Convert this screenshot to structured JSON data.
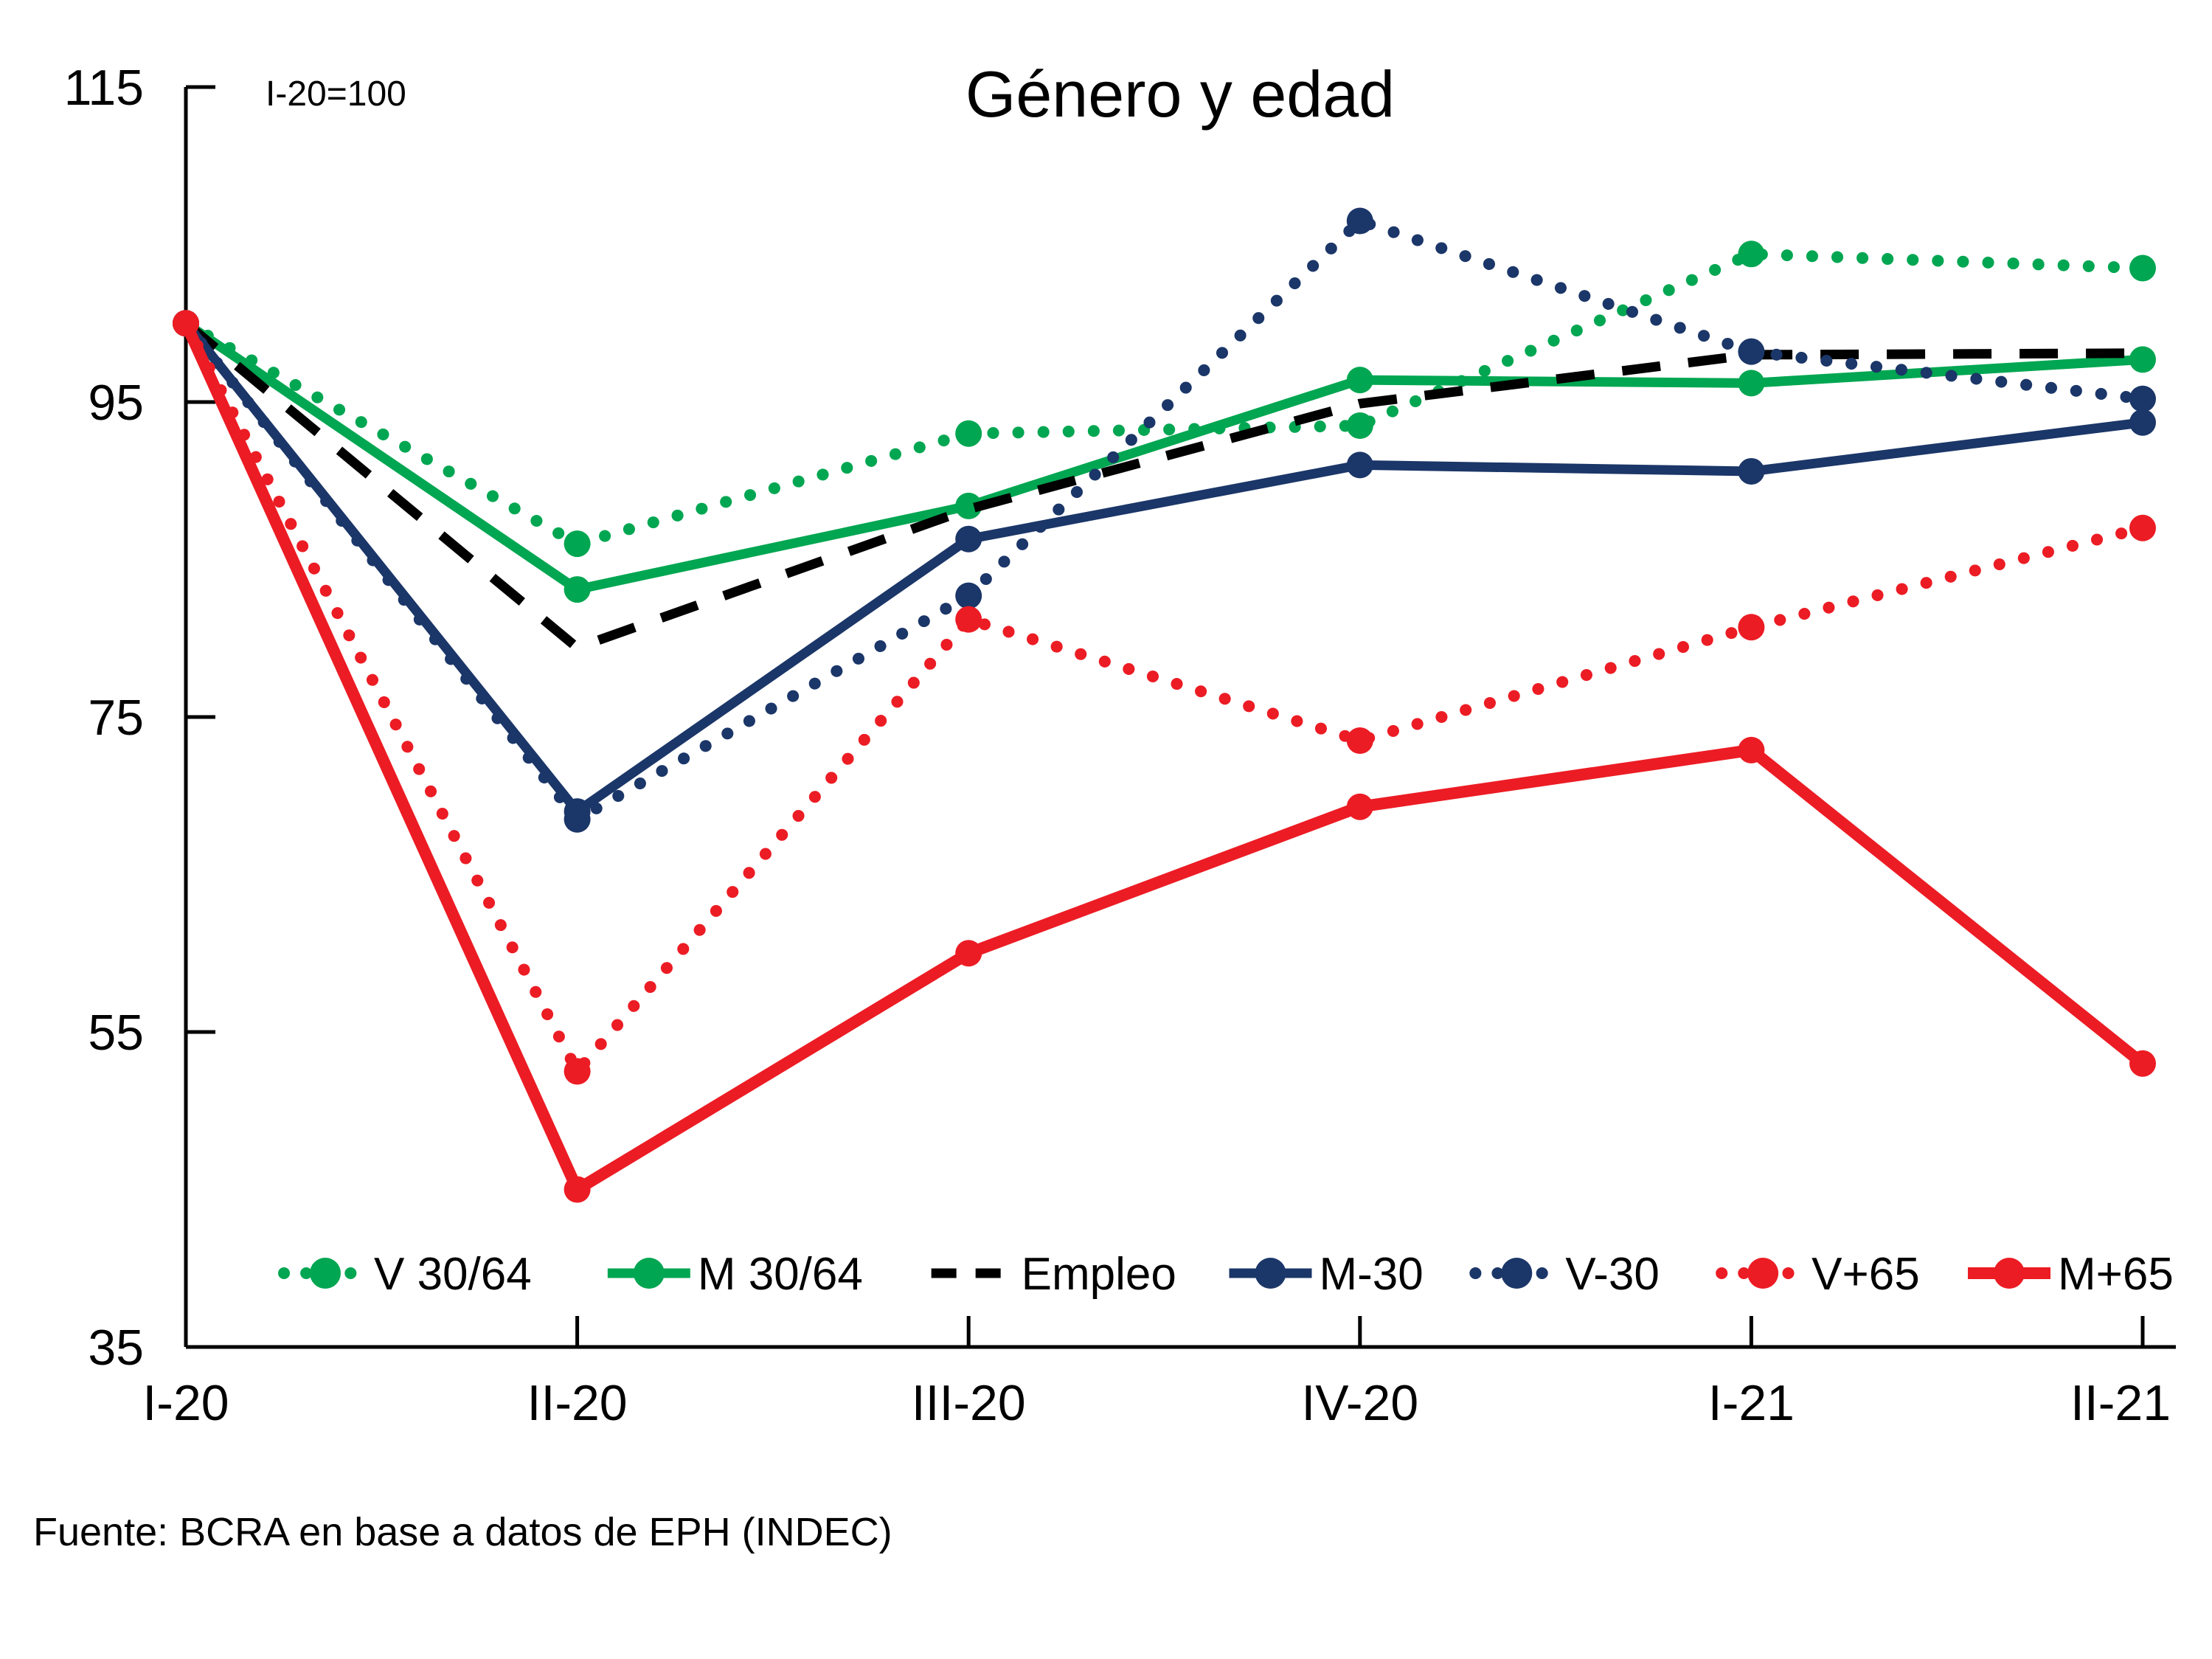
{
  "footer": {
    "source": "Fuente: BCRA en base a datos de EPH (INDEC)"
  },
  "colors": {
    "green": "#00A651",
    "navy": "#1B3668",
    "red": "#EC1C24",
    "black": "#000000",
    "axis": "#000000"
  },
  "chart_data": {
    "type": "line",
    "title": "Género y edad",
    "note": "I-20=100",
    "xlabel": "",
    "ylabel": "",
    "categories": [
      "I-20",
      "II-20",
      "III-20",
      "IV-20",
      "I-21",
      "II-21"
    ],
    "ylim": [
      35,
      115
    ],
    "yticks": [
      35,
      55,
      75,
      95,
      115
    ],
    "grid": false,
    "legend_position": "bottom",
    "series": [
      {
        "name": "V 30/64",
        "color": "#00A651",
        "style": "dotted",
        "marker": true,
        "values": [
          100,
          86.0,
          93.0,
          93.5,
          104.4,
          103.5
        ]
      },
      {
        "name": "M 30/64",
        "color": "#00A651",
        "style": "solid",
        "marker": true,
        "values": [
          100,
          83.1,
          88.4,
          96.4,
          96.2,
          97.7
        ]
      },
      {
        "name": "Empleo",
        "color": "#000000",
        "style": "dashed",
        "marker": false,
        "values": [
          100,
          79.4,
          88.2,
          94.9,
          98.0,
          98.1
        ]
      },
      {
        "name": "M-30",
        "color": "#1B3668",
        "style": "solid",
        "marker": true,
        "values": [
          100,
          69.0,
          86.3,
          91.0,
          90.6,
          93.7
        ]
      },
      {
        "name": "V-30",
        "color": "#1B3668",
        "style": "dotted",
        "marker": true,
        "values": [
          100,
          68.5,
          82.7,
          106.5,
          98.2,
          95.2
        ]
      },
      {
        "name": "V+65",
        "color": "#EC1C24",
        "style": "dotted",
        "marker": true,
        "values": [
          100,
          52.5,
          81.2,
          73.5,
          80.7,
          87.0
        ]
      },
      {
        "name": "M+65",
        "color": "#EC1C24",
        "style": "solid",
        "marker": true,
        "values": [
          100,
          45.0,
          60.0,
          69.3,
          72.9,
          53.0
        ]
      }
    ]
  }
}
